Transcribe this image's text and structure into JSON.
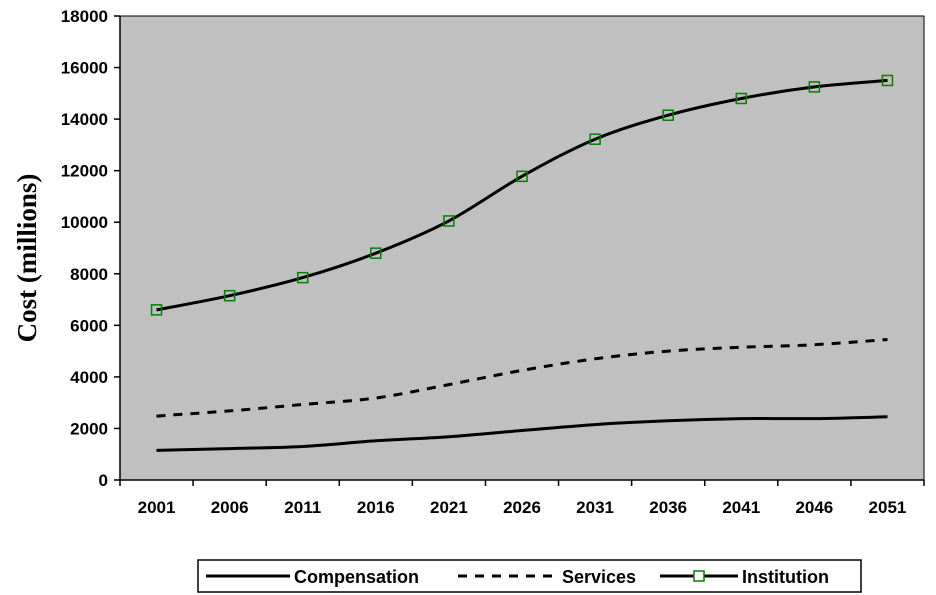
{
  "chart_data": {
    "type": "line",
    "title": "",
    "xlabel": "",
    "ylabel": "Cost (millions)",
    "x": [
      "2001",
      "2006",
      "2011",
      "2016",
      "2021",
      "2026",
      "2031",
      "2036",
      "2041",
      "2046",
      "2051"
    ],
    "ylim": [
      0,
      18000
    ],
    "yticks": [
      0,
      2000,
      4000,
      6000,
      8000,
      10000,
      12000,
      14000,
      16000,
      18000
    ],
    "grid": false,
    "legend_position": "bottom",
    "series": [
      {
        "name": "Compensation",
        "style": "solid",
        "marker": "none",
        "values": [
          1150,
          1220,
          1300,
          1520,
          1680,
          1920,
          2150,
          2300,
          2380,
          2380,
          2450
        ]
      },
      {
        "name": "Services",
        "style": "dashed",
        "marker": "none",
        "values": [
          2480,
          2680,
          2930,
          3180,
          3700,
          4250,
          4700,
          5000,
          5150,
          5250,
          5450
        ]
      },
      {
        "name": "Institution",
        "style": "solid",
        "marker": "square",
        "values": [
          6600,
          7150,
          7850,
          8800,
          10050,
          11780,
          13220,
          14150,
          14800,
          15250,
          15500
        ]
      }
    ],
    "colors": {
      "plot_background": "#c0c0c0",
      "line": "#000000",
      "marker": "#008000"
    }
  }
}
